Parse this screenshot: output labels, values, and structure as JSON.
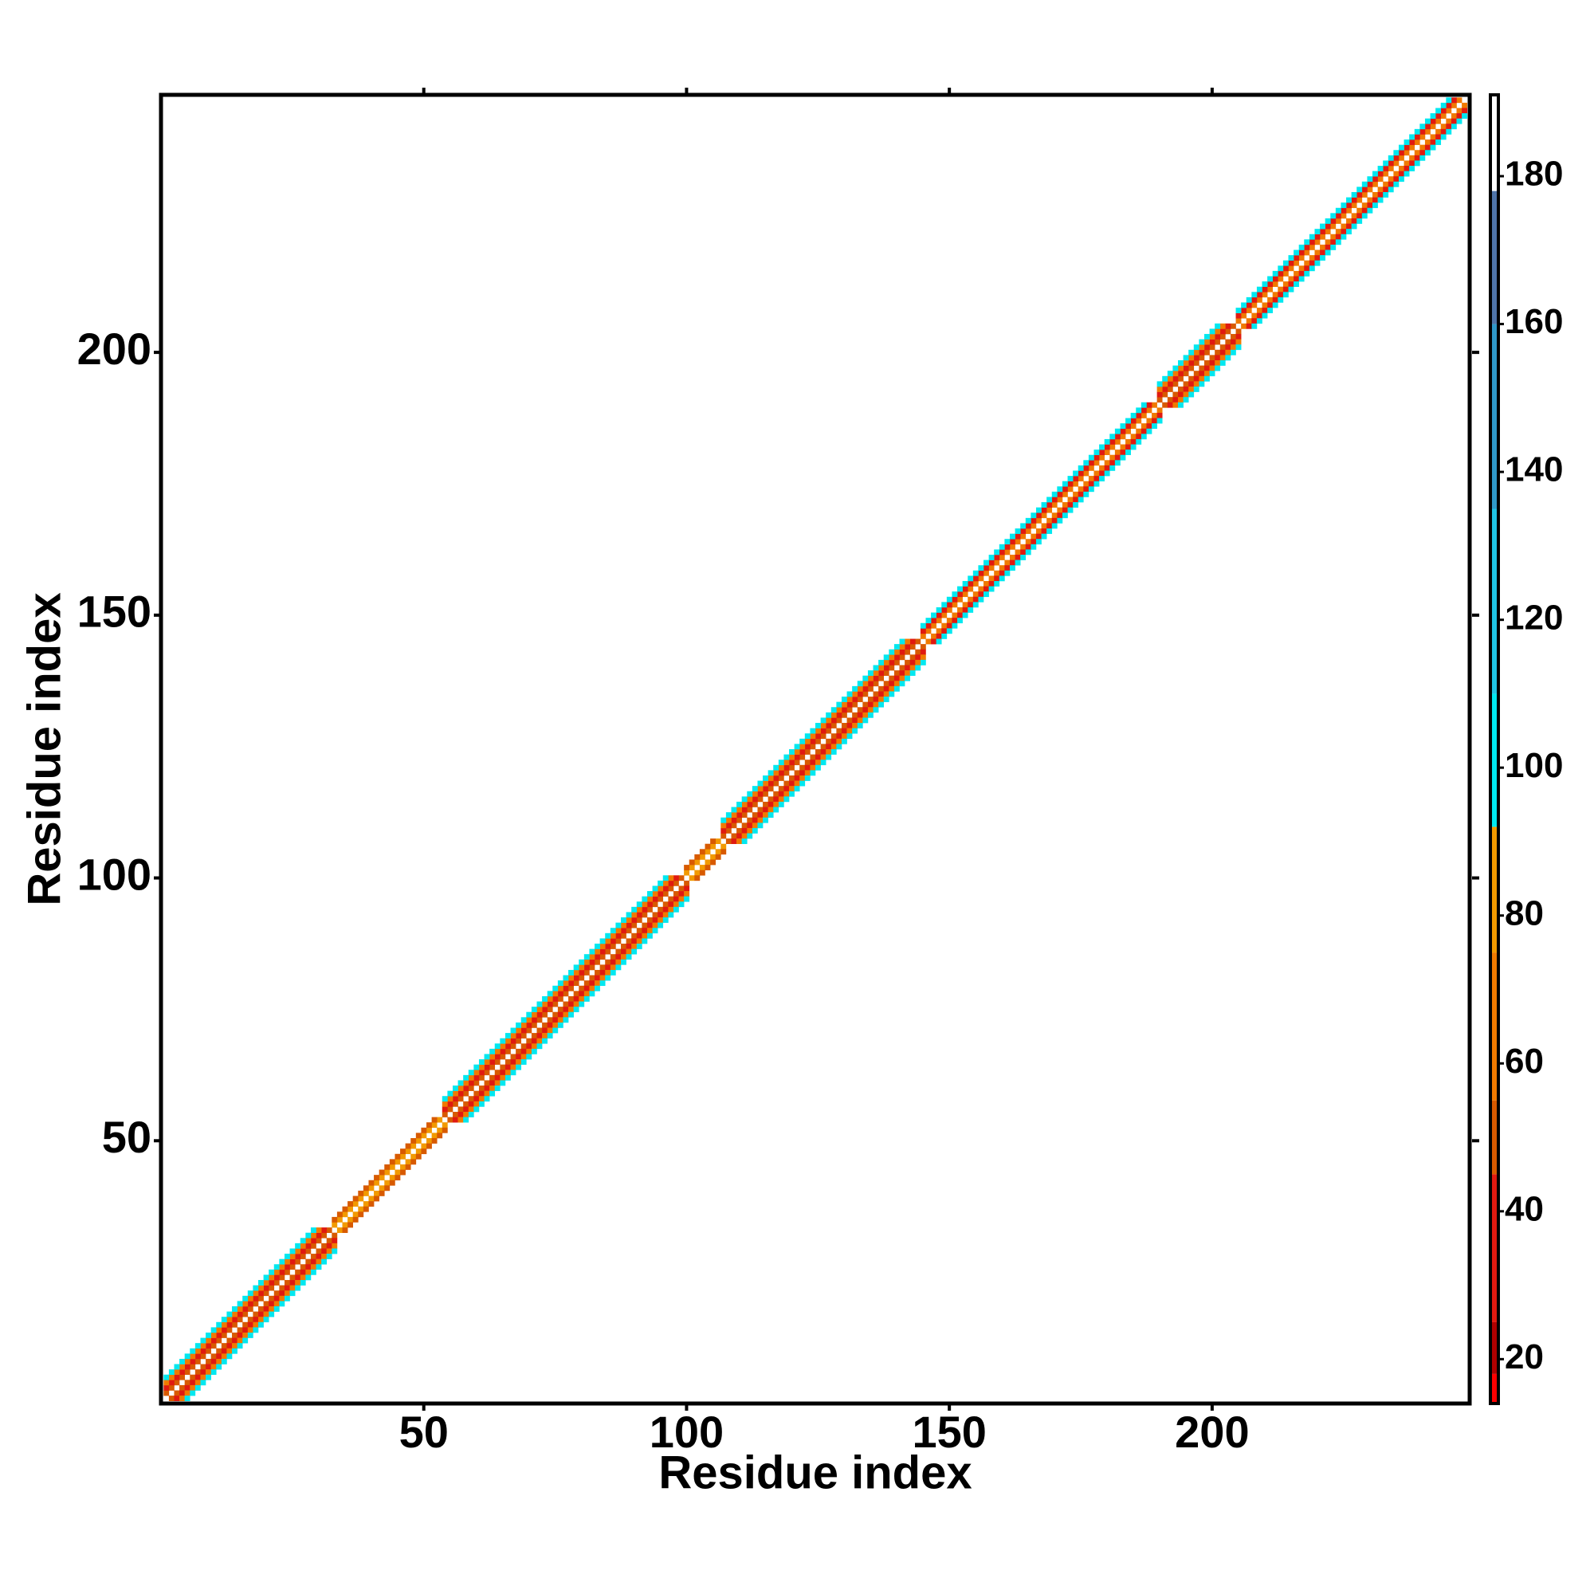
{
  "chart_data": {
    "type": "heatmap",
    "xlabel": "Residue index",
    "ylabel": "Residue index",
    "xlim": [
      0,
      249
    ],
    "ylim": [
      0,
      249
    ],
    "xticks": [
      50,
      100,
      150,
      200
    ],
    "yticks": [
      50,
      100,
      150,
      200
    ],
    "segments": [
      {
        "start": 1,
        "end": 33,
        "values": [
          50,
          30,
          65,
          100
        ]
      },
      {
        "start": 33,
        "end": 54,
        "values": [
          80,
          45
        ]
      },
      {
        "start": 54,
        "end": 100,
        "values": [
          50,
          30,
          65,
          100
        ]
      },
      {
        "start": 100,
        "end": 107,
        "values": [
          80,
          45
        ]
      },
      {
        "start": 107,
        "end": 145,
        "values": [
          50,
          30,
          65,
          100
        ]
      },
      {
        "start": 145,
        "end": 190,
        "values": [
          60,
          30,
          100
        ]
      },
      {
        "start": 190,
        "end": 205,
        "values": [
          50,
          25,
          65,
          100
        ]
      },
      {
        "start": 205,
        "end": 248,
        "values": [
          60,
          30,
          100
        ]
      }
    ],
    "colorbar": {
      "clim": [
        14,
        191
      ],
      "ticks": [
        20,
        40,
        60,
        80,
        100,
        120,
        140,
        160,
        180
      ],
      "bounds": [
        14,
        18,
        25,
        45,
        55,
        75,
        92,
        110,
        135,
        160,
        178,
        191
      ],
      "colors": [
        "#ff0000",
        "#b00000",
        "#e01a10",
        "#d85a00",
        "#f07a00",
        "#f29a00",
        "#00e8f0",
        "#20c4e4",
        "#3098c8",
        "#4f74a8",
        "#ffffff"
      ]
    }
  }
}
